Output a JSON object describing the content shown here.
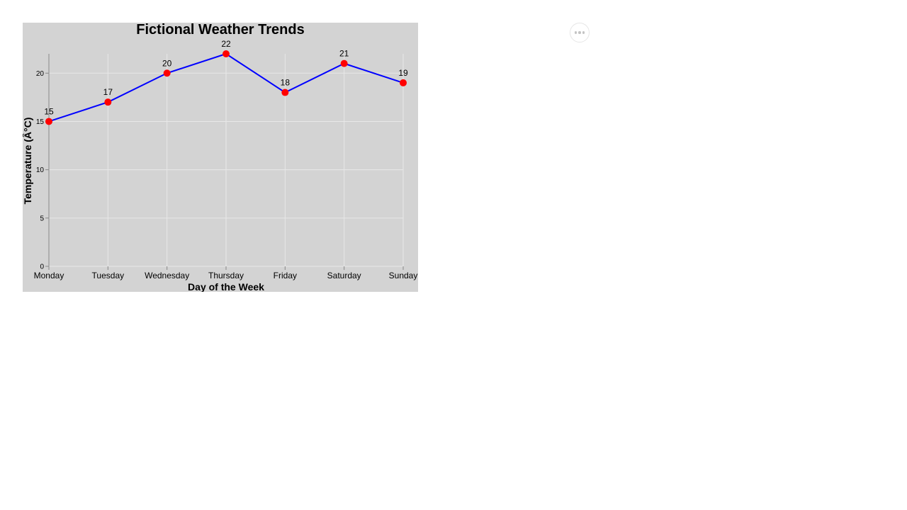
{
  "chart_data": {
    "type": "line",
    "title": "Fictional Weather Trends",
    "xlabel": "Day of the Week",
    "ylabel": "Temperature (Â°C)",
    "categories": [
      "Monday",
      "Tuesday",
      "Wednesday",
      "Thursday",
      "Friday",
      "Saturday",
      "Sunday"
    ],
    "values": [
      15,
      17,
      20,
      22,
      18,
      21,
      19
    ],
    "ylim": [
      0,
      22
    ],
    "yticks": [
      0,
      5,
      10,
      15,
      20
    ],
    "grid": true,
    "data_labels": true,
    "legend": "none",
    "colors": {
      "background": "#d3d3d3",
      "line": "#0000ff",
      "marker": "#ff0000",
      "grid": "#e8e8e8",
      "axis": "#888888",
      "text": "#000000"
    }
  },
  "toolbar": {
    "more_icon": "ellipsis-horizontal-icon"
  }
}
